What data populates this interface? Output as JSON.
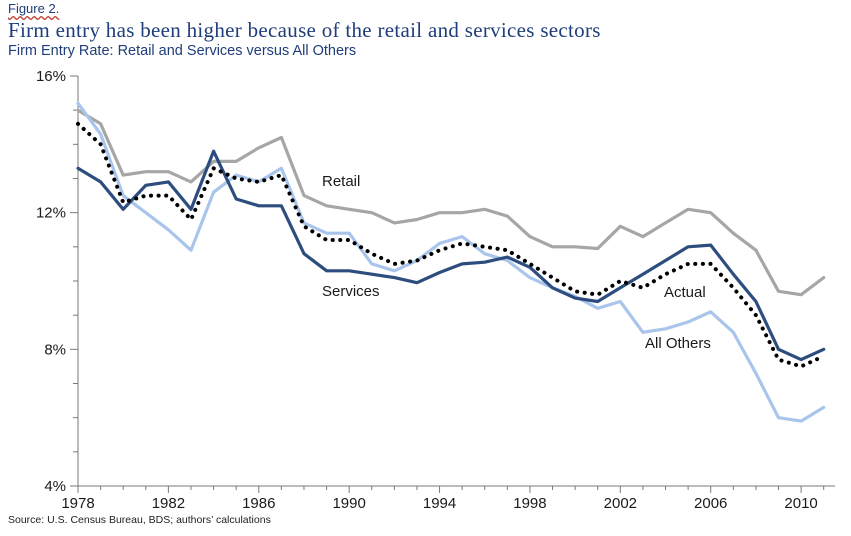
{
  "figure_label": "Figure 2.",
  "source": "Source: U.S. Census Bureau, BDS; authors’ calculations",
  "chart_data": {
    "type": "line",
    "title": "Firm entry has been higher because of the retail and services sectors",
    "subtitle": "Firm Entry Rate: Retail and Services versus All Others",
    "xlabel": "",
    "ylabel": "",
    "x_ticks": [
      "1978",
      "1982",
      "1986",
      "1990",
      "1994",
      "1998",
      "2002",
      "2006",
      "2010"
    ],
    "y_ticks": [
      "16%",
      "12%",
      "8%",
      "4%"
    ],
    "xlim": [
      1978,
      2011.5
    ],
    "ylim": [
      4,
      16
    ],
    "grid": false,
    "x": [
      1978,
      1979,
      1980,
      1981,
      1982,
      1983,
      1984,
      1985,
      1986,
      1987,
      1988,
      1989,
      1990,
      1991,
      1992,
      1993,
      1994,
      1995,
      1996,
      1997,
      1998,
      1999,
      2000,
      2001,
      2002,
      2003,
      2004,
      2005,
      2006,
      2007,
      2008,
      2009,
      2010,
      2011
    ],
    "series": [
      {
        "name": "Retail",
        "color": "#a6a6a6",
        "values": [
          15.0,
          14.6,
          13.1,
          13.2,
          13.2,
          12.9,
          13.5,
          13.5,
          13.9,
          14.2,
          12.5,
          12.2,
          12.1,
          12.0,
          11.7,
          11.8,
          12.0,
          12.0,
          12.1,
          11.9,
          11.3,
          11.0,
          11.0,
          10.95,
          11.6,
          11.3,
          11.7,
          12.1,
          12.0,
          11.4,
          10.9,
          9.7,
          9.6,
          10.1
        ]
      },
      {
        "name": "Services",
        "color": "#2e4d7f",
        "values": [
          13.3,
          12.9,
          12.1,
          12.8,
          12.9,
          12.1,
          13.8,
          12.4,
          12.2,
          12.2,
          10.8,
          10.3,
          10.3,
          10.2,
          10.1,
          9.95,
          10.25,
          10.5,
          10.55,
          10.7,
          10.4,
          9.8,
          9.5,
          9.4,
          9.8,
          10.2,
          10.6,
          11.0,
          11.05,
          10.2,
          9.4,
          8.0,
          7.7,
          8.0
        ]
      },
      {
        "name": "Actual",
        "color": "#000000",
        "values": [
          14.6,
          14.0,
          12.3,
          12.5,
          12.5,
          11.8,
          13.3,
          13.0,
          12.9,
          13.1,
          11.6,
          11.2,
          11.2,
          10.8,
          10.5,
          10.6,
          10.9,
          11.1,
          11.0,
          10.9,
          10.5,
          10.1,
          9.7,
          9.6,
          10.0,
          9.8,
          10.2,
          10.5,
          10.5,
          9.8,
          9.0,
          7.7,
          7.5,
          7.8
        ]
      },
      {
        "name": "All Others",
        "color": "#a9c5ec",
        "values": [
          15.2,
          14.3,
          12.5,
          12.0,
          11.5,
          10.9,
          12.6,
          13.1,
          12.9,
          13.3,
          11.7,
          11.4,
          11.4,
          10.5,
          10.3,
          10.6,
          11.1,
          11.3,
          10.8,
          10.6,
          10.1,
          9.8,
          9.55,
          9.2,
          9.4,
          8.5,
          8.6,
          8.8,
          9.1,
          8.5,
          7.3,
          6.0,
          5.9,
          6.3
        ]
      }
    ],
    "annotations": [
      {
        "series": "Retail",
        "text": "Retail"
      },
      {
        "series": "Services",
        "text": "Services"
      },
      {
        "series": "Actual",
        "text": "Actual"
      },
      {
        "series": "All Others",
        "text": "All Others"
      }
    ]
  }
}
